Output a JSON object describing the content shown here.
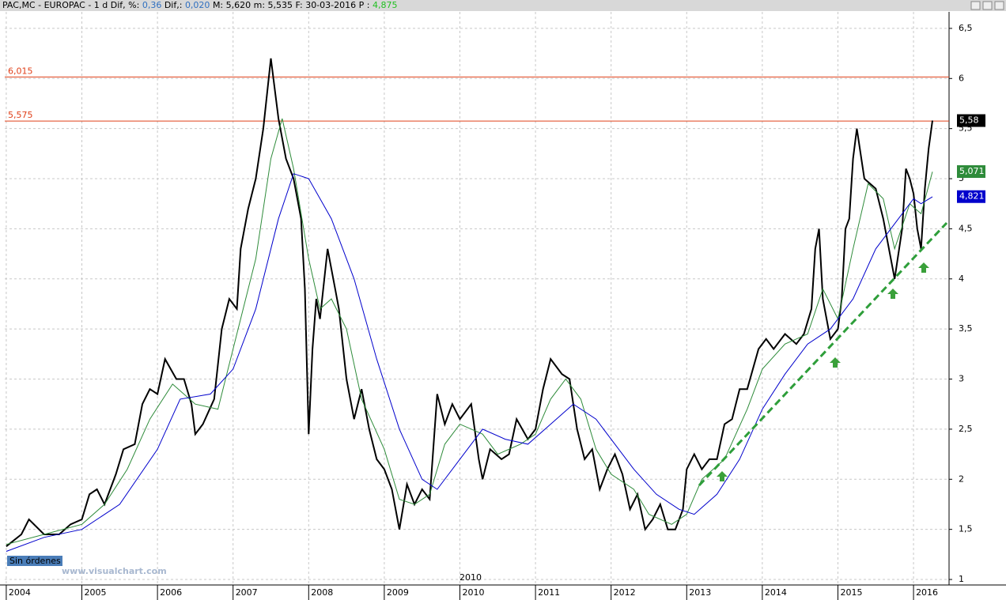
{
  "header": {
    "symbol": "PAC,MC - EUROPAC -  1 d",
    "pct_label": "Dif, %:",
    "pct": "0,36",
    "dif_label": "Dif,:",
    "dif": "0,020",
    "rest": "M: 5,620 m: 5,535 F: 30-03-2016 P :",
    "p": "4,875"
  },
  "chart_data": {
    "type": "line",
    "xlim": [
      2003.98,
      2016.47
    ],
    "xticks": [
      2004,
      2005,
      2006,
      2007,
      2008,
      2009,
      2010,
      2011,
      2012,
      2013,
      2014,
      2015,
      2016
    ],
    "ylim": [
      0.945,
      6.665
    ],
    "yticks": [
      1,
      {
        "value": 1.5,
        "label": "1,5"
      },
      2,
      {
        "value": 2.5,
        "label": "2,5"
      },
      3,
      {
        "value": 3.5,
        "label": "3,5"
      },
      4,
      {
        "value": 4.5,
        "label": "4,5"
      },
      5,
      {
        "value": 5.5,
        "label": "5,5"
      },
      6,
      {
        "value": 6.5,
        "label": "6,5"
      }
    ],
    "grid": true,
    "levels": [
      {
        "value": 6.015,
        "label": "6,015"
      },
      {
        "value": 5.575,
        "label": "5,575"
      }
    ],
    "level_color": "#e0401a",
    "annotations": [
      "Sin órdenes",
      "www.visualchart.com",
      "2010"
    ],
    "series": [
      {
        "color": "#000000",
        "last_label": "5,58",
        "last_value": 5.58,
        "x": [
          2004.0,
          2004.2,
          2004.3,
          2004.5,
          2004.7,
          2004.85,
          2005.0,
          2005.1,
          2005.2,
          2005.3,
          2005.45,
          2005.55,
          2005.7,
          2005.8,
          2005.9,
          2006.0,
          2006.1,
          2006.25,
          2006.35,
          2006.45,
          2006.5,
          2006.6,
          2006.75,
          2006.85,
          2006.95,
          2007.05,
          2007.1,
          2007.2,
          2007.3,
          2007.4,
          2007.5,
          2007.55,
          2007.6,
          2007.7,
          2007.8,
          2007.9,
          2007.95,
          2008.0,
          2008.05,
          2008.1,
          2008.15,
          2008.25,
          2008.35,
          2008.4,
          2008.5,
          2008.6,
          2008.7,
          2008.8,
          2008.9,
          2009.0,
          2009.1,
          2009.2,
          2009.3,
          2009.4,
          2009.5,
          2009.6,
          2009.7,
          2009.8,
          2009.9,
          2010.0,
          2010.15,
          2010.25,
          2010.3,
          2010.4,
          2010.55,
          2010.65,
          2010.75,
          2010.9,
          2011.0,
          2011.1,
          2011.2,
          2011.35,
          2011.45,
          2011.55,
          2011.65,
          2011.75,
          2011.85,
          2011.95,
          2012.05,
          2012.15,
          2012.25,
          2012.35,
          2012.45,
          2012.55,
          2012.65,
          2012.75,
          2012.85,
          2012.95,
          2013.0,
          2013.1,
          2013.2,
          2013.3,
          2013.4,
          2013.5,
          2013.6,
          2013.7,
          2013.8,
          2013.95,
          2014.05,
          2014.15,
          2014.3,
          2014.45,
          2014.55,
          2014.65,
          2014.7,
          2014.75,
          2014.8,
          2014.9,
          2015.0,
          2015.05,
          2015.1,
          2015.15,
          2015.2,
          2015.25,
          2015.35,
          2015.5,
          2015.6,
          2015.7,
          2015.75,
          2015.85,
          2015.9,
          2015.95,
          2016.0,
          2016.05,
          2016.1,
          2016.15,
          2016.2,
          2016.25
        ],
        "values": [
          1.33,
          1.45,
          1.6,
          1.45,
          1.45,
          1.55,
          1.6,
          1.85,
          1.9,
          1.75,
          2.05,
          2.3,
          2.35,
          2.75,
          2.9,
          2.85,
          3.2,
          3.0,
          3.0,
          2.75,
          2.45,
          2.55,
          2.8,
          3.5,
          3.8,
          3.7,
          4.3,
          4.7,
          5.0,
          5.5,
          6.2,
          5.9,
          5.6,
          5.2,
          5.0,
          4.6,
          3.9,
          2.45,
          3.3,
          3.8,
          3.6,
          4.3,
          3.9,
          3.7,
          3.0,
          2.6,
          2.9,
          2.5,
          2.2,
          2.1,
          1.9,
          1.5,
          1.95,
          1.75,
          1.9,
          1.8,
          2.85,
          2.55,
          2.75,
          2.6,
          2.75,
          2.2,
          2.0,
          2.3,
          2.2,
          2.25,
          2.6,
          2.4,
          2.5,
          2.9,
          3.2,
          3.05,
          3.0,
          2.5,
          2.2,
          2.3,
          1.9,
          2.1,
          2.25,
          2.05,
          1.7,
          1.85,
          1.5,
          1.6,
          1.75,
          1.5,
          1.5,
          1.7,
          2.1,
          2.25,
          2.1,
          2.2,
          2.2,
          2.55,
          2.6,
          2.9,
          2.9,
          3.3,
          3.4,
          3.3,
          3.45,
          3.35,
          3.45,
          3.7,
          4.3,
          4.5,
          3.8,
          3.4,
          3.5,
          3.8,
          4.5,
          4.6,
          5.2,
          5.5,
          5.0,
          4.9,
          4.6,
          4.2,
          4.0,
          4.5,
          5.1,
          5.0,
          4.85,
          4.5,
          4.3,
          4.9,
          5.3,
          5.58
        ]
      },
      {
        "color": "#2e8b3a",
        "last_label": "5,071",
        "last_value": 5.071,
        "x": [
          2004.0,
          2004.5,
          2005.0,
          2005.3,
          2005.6,
          2005.9,
          2006.2,
          2006.5,
          2006.8,
          2007.0,
          2007.3,
          2007.5,
          2007.65,
          2007.8,
          2008.0,
          2008.15,
          2008.3,
          2008.5,
          2008.7,
          2009.0,
          2009.2,
          2009.4,
          2009.6,
          2009.8,
          2010.0,
          2010.3,
          2010.5,
          2010.8,
          2011.0,
          2011.2,
          2011.4,
          2011.6,
          2011.8,
          2012.0,
          2012.3,
          2012.5,
          2012.8,
          2013.0,
          2013.2,
          2013.5,
          2013.8,
          2014.0,
          2014.3,
          2014.6,
          2014.8,
          2015.0,
          2015.2,
          2015.4,
          2015.6,
          2015.75,
          2015.95,
          2016.1,
          2016.25
        ],
        "values": [
          1.35,
          1.45,
          1.55,
          1.75,
          2.1,
          2.6,
          2.95,
          2.75,
          2.7,
          3.3,
          4.2,
          5.2,
          5.6,
          5.1,
          4.2,
          3.7,
          3.8,
          3.5,
          2.8,
          2.3,
          1.8,
          1.75,
          1.85,
          2.35,
          2.55,
          2.45,
          2.25,
          2.35,
          2.45,
          2.8,
          3.0,
          2.8,
          2.3,
          2.05,
          1.9,
          1.65,
          1.55,
          1.65,
          2.0,
          2.2,
          2.7,
          3.1,
          3.35,
          3.45,
          3.9,
          3.6,
          4.3,
          4.95,
          4.8,
          4.3,
          4.75,
          4.65,
          5.07
        ]
      },
      {
        "color": "#0000cc",
        "last_label": "4,821",
        "last_value": 4.821,
        "x": [
          2004.0,
          2004.5,
          2005.0,
          2005.5,
          2006.0,
          2006.3,
          2006.7,
          2007.0,
          2007.3,
          2007.6,
          2007.8,
          2008.0,
          2008.3,
          2008.6,
          2008.9,
          2009.2,
          2009.5,
          2009.7,
          2010.0,
          2010.3,
          2010.6,
          2010.9,
          2011.2,
          2011.5,
          2011.8,
          2012.0,
          2012.3,
          2012.6,
          2012.9,
          2013.1,
          2013.4,
          2013.7,
          2014.0,
          2014.3,
          2014.6,
          2014.9,
          2015.2,
          2015.5,
          2015.8,
          2016.0,
          2016.1,
          2016.25
        ],
        "values": [
          1.28,
          1.42,
          1.5,
          1.75,
          2.3,
          2.8,
          2.85,
          3.1,
          3.7,
          4.6,
          5.05,
          5.0,
          4.6,
          4.0,
          3.2,
          2.5,
          2.0,
          1.9,
          2.2,
          2.5,
          2.4,
          2.35,
          2.55,
          2.75,
          2.6,
          2.4,
          2.1,
          1.85,
          1.7,
          1.65,
          1.85,
          2.2,
          2.7,
          3.05,
          3.35,
          3.5,
          3.8,
          4.3,
          4.6,
          4.8,
          4.75,
          4.82
        ]
      }
    ]
  }
}
